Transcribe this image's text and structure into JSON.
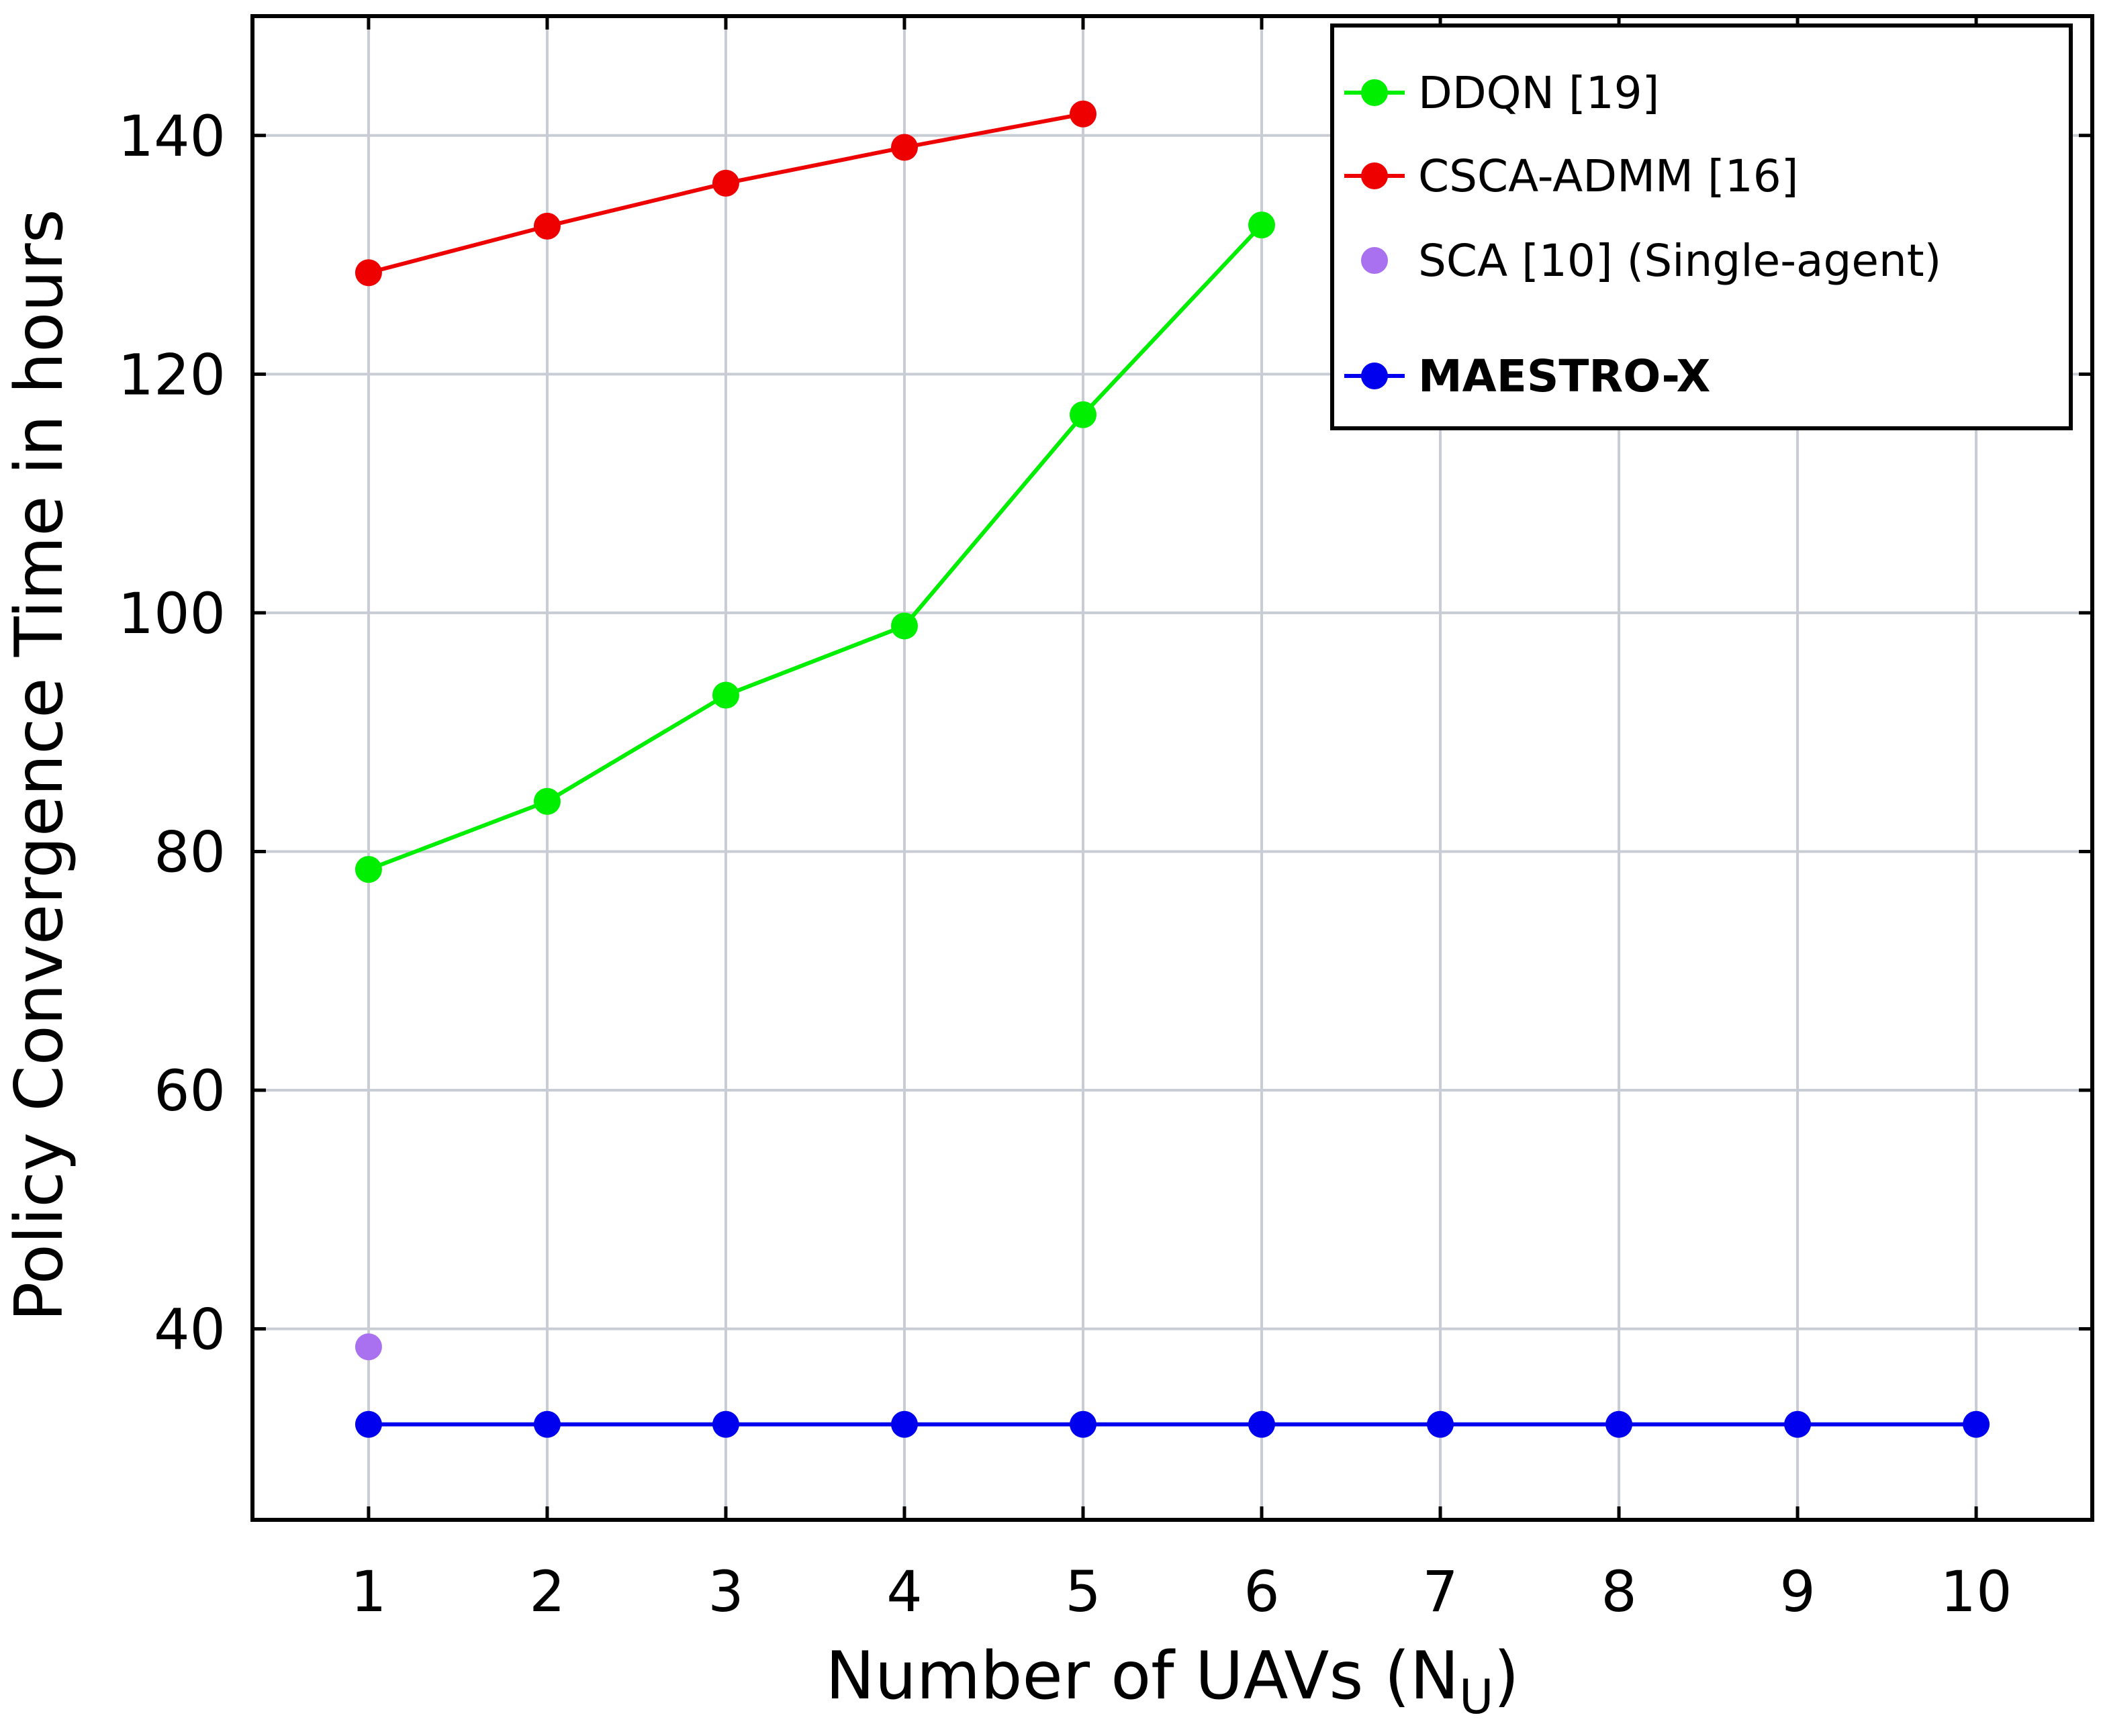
{
  "chart_data": {
    "type": "line",
    "xlabel_main": "Number of UAVs (N",
    "xlabel_sub": "U",
    "xlabel_close": ")",
    "ylabel": "Policy Convergence Time in hours",
    "xlim": [
      0.35,
      10.65
    ],
    "ylim": [
      24,
      150
    ],
    "xticks": [
      "1",
      "2",
      "3",
      "4",
      "5",
      "6",
      "7",
      "8",
      "9",
      "10"
    ],
    "xtick_values": [
      1,
      2,
      3,
      4,
      5,
      6,
      7,
      8,
      9,
      10
    ],
    "yticks": [
      "40",
      "60",
      "80",
      "100",
      "120",
      "140"
    ],
    "ytick_values": [
      40,
      60,
      80,
      100,
      120,
      140
    ],
    "grid": true,
    "legend_position": "top-right",
    "series": [
      {
        "name": "DDQN [19]",
        "color": "#00ee00",
        "line": true,
        "x": [
          1,
          2,
          3,
          4,
          5,
          6
        ],
        "y": [
          78.5,
          84.2,
          93.1,
          98.9,
          116.6,
          132.5
        ]
      },
      {
        "name": "CSCA-ADMM [16]",
        "color": "#ee0000",
        "line": true,
        "x": [
          1,
          2,
          3,
          4,
          5
        ],
        "y": [
          128.5,
          132.4,
          136.0,
          139.0,
          141.8
        ]
      },
      {
        "name": "SCA [10] (Single-agent)",
        "color": "#a970f0",
        "line": false,
        "x": [
          1
        ],
        "y": [
          38.5
        ]
      },
      {
        "name": "MAESTRO-X",
        "color": "#0000ee",
        "line": true,
        "bold": true,
        "x": [
          1,
          2,
          3,
          4,
          5,
          6,
          7,
          8,
          9,
          10
        ],
        "y": [
          32,
          32,
          32,
          32,
          32,
          32,
          32,
          32,
          32,
          32
        ]
      }
    ]
  }
}
